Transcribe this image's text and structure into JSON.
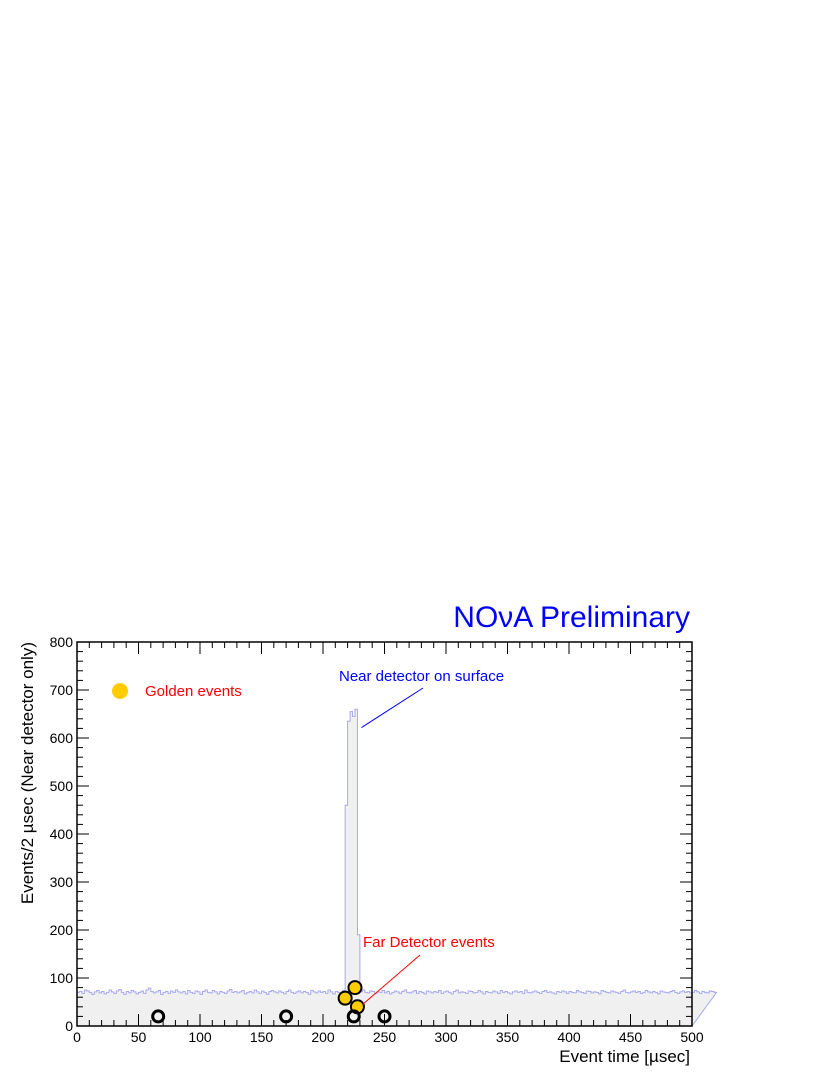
{
  "chart_data": {
    "type": "bar",
    "title": "NOνA Preliminary",
    "xlabel": "Event time [µsec]",
    "ylabel": "Events/2 µsec (Near detector only)",
    "xlim": [
      0,
      500
    ],
    "ylim": [
      0,
      800
    ],
    "x_ticks": [
      "0",
      "50",
      "100",
      "150",
      "200",
      "250",
      "300",
      "350",
      "400",
      "450",
      "500"
    ],
    "y_ticks": [
      "0",
      "100",
      "200",
      "300",
      "400",
      "500",
      "600",
      "700",
      "800"
    ],
    "grid": false,
    "bin_width": 2,
    "histogram_series": {
      "name": "Near detector on surface",
      "color": "#a8a8f0",
      "fill": "#f0f0f0",
      "values": [
        70,
        72,
        68,
        75,
        73,
        70,
        66,
        71,
        74,
        69,
        72,
        67,
        70,
        75,
        71,
        68,
        73,
        76,
        70,
        66,
        72,
        69,
        74,
        71,
        67,
        70,
        73,
        68,
        75,
        79,
        72,
        69,
        71,
        74,
        66,
        70,
        72,
        68,
        73,
        70,
        75,
        71,
        69,
        72,
        67,
        74,
        70,
        68,
        73,
        71,
        66,
        72,
        75,
        70,
        69,
        74,
        71,
        67,
        72,
        70,
        68,
        73,
        76,
        70,
        72,
        69,
        71,
        74,
        67,
        70,
        72,
        69,
        75,
        71,
        68,
        73,
        70,
        66,
        72,
        74,
        71,
        69,
        73,
        70,
        67,
        72,
        75,
        70,
        68,
        71,
        73,
        69,
        72,
        70,
        66,
        74,
        71,
        69,
        73,
        70,
        72,
        68,
        75,
        71,
        67,
        72,
        70,
        69,
        74,
        71,
        68,
        73,
        70,
        72,
        66,
        71,
        75,
        70,
        69,
        73,
        72,
        68,
        71,
        70,
        74,
        69,
        72,
        67,
        70,
        73,
        71,
        68,
        72,
        75,
        70,
        69,
        71,
        74,
        68,
        72,
        70,
        67,
        73,
        71,
        69,
        72,
        70,
        74,
        68,
        71,
        73,
        70,
        67,
        72,
        75,
        69,
        71,
        70,
        68,
        73,
        72,
        69,
        70,
        74,
        71,
        67,
        72,
        70,
        69,
        73,
        71,
        68,
        74,
        70,
        72,
        69,
        67,
        71,
        73,
        70,
        72,
        68,
        75,
        70,
        69,
        71,
        73,
        70,
        68,
        72,
        74,
        70,
        71,
        69,
        67,
        72,
        70,
        73,
        71,
        68,
        72,
        70,
        69,
        74,
        71,
        70,
        68,
        73,
        72,
        69,
        71,
        70,
        67,
        74,
        72,
        70,
        69,
        73,
        71,
        70,
        68,
        72,
        75,
        70,
        69,
        71,
        73,
        70,
        72,
        68,
        70,
        74,
        71,
        69,
        72,
        70,
        67,
        73,
        71,
        70,
        69,
        72,
        74,
        70,
        68,
        71,
        73,
        70,
        72,
        69,
        70,
        74,
        71,
        68,
        72,
        70,
        69,
        73,
        72,
        70
      ],
      "peak_bins": [
        {
          "x": 218,
          "value": 460
        },
        {
          "x": 220,
          "value": 635
        },
        {
          "x": 222,
          "value": 655
        },
        {
          "x": 224,
          "value": 645
        },
        {
          "x": 226,
          "value": 660
        },
        {
          "x": 228,
          "value": 190
        }
      ]
    },
    "series": [
      {
        "name": "Golden events",
        "color": "#ffcc00",
        "marker": "filled-circle",
        "points": [
          {
            "x": 218,
            "y": 58
          },
          {
            "x": 226,
            "y": 80
          },
          {
            "x": 228,
            "y": 40
          }
        ]
      },
      {
        "name": "",
        "color": "#000000",
        "marker": "open-circle",
        "points": [
          {
            "x": 66,
            "y": 20
          },
          {
            "x": 170,
            "y": 20
          },
          {
            "x": 225,
            "y": 20
          },
          {
            "x": 250,
            "y": 20
          }
        ]
      }
    ],
    "legend": {
      "position": "top-left",
      "entries": [
        "Golden events"
      ]
    },
    "annotations": {
      "near_detector": {
        "text": "Near detector on surface",
        "color": "#0000ff",
        "points_to_x": 228,
        "points_to_y": 630
      },
      "far_detector": {
        "text": "Far Detector events",
        "color": "#ff0000",
        "points_to_x": 229,
        "points_to_y": 45
      }
    },
    "banner_color": "#0000ff",
    "legend_text_color": "#ff0000"
  }
}
